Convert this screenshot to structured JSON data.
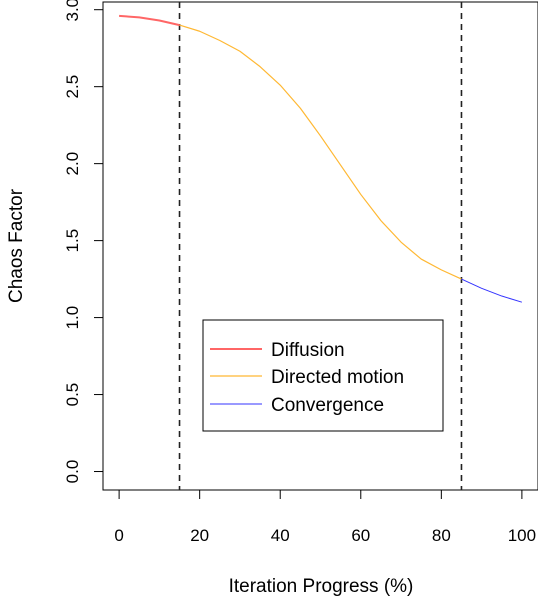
{
  "chart_data": {
    "type": "line",
    "xlabel": "Iteration Progress (%)",
    "ylabel": "Chaos Factor",
    "xlim": [
      -4,
      104
    ],
    "ylim": [
      -0.12,
      3.05
    ],
    "xticks": [
      "0",
      "20",
      "40",
      "60",
      "80",
      "100"
    ],
    "yticks": [
      "0.0",
      "0.5",
      "1.0",
      "1.5",
      "2.0",
      "2.5",
      "3.0"
    ],
    "grid": false,
    "legend_position": "bottom-center",
    "vlines": [
      15,
      85
    ],
    "series": [
      {
        "name": "Diffusion",
        "color": "#ff6666",
        "x": [
          0,
          5,
          10,
          15
        ],
        "y": [
          2.96,
          2.95,
          2.93,
          2.9
        ]
      },
      {
        "name": "Directed motion",
        "color": "#ffb833",
        "x": [
          15,
          20,
          25,
          30,
          35,
          40,
          45,
          50,
          55,
          60,
          65,
          70,
          75,
          80,
          85
        ],
        "y": [
          2.9,
          2.86,
          2.8,
          2.73,
          2.63,
          2.51,
          2.36,
          2.18,
          1.99,
          1.8,
          1.63,
          1.49,
          1.38,
          1.31,
          1.25
        ]
      },
      {
        "name": "Convergence",
        "color": "#3333ff",
        "x": [
          85,
          90,
          95,
          100
        ],
        "y": [
          1.25,
          1.19,
          1.14,
          1.1
        ]
      }
    ]
  }
}
